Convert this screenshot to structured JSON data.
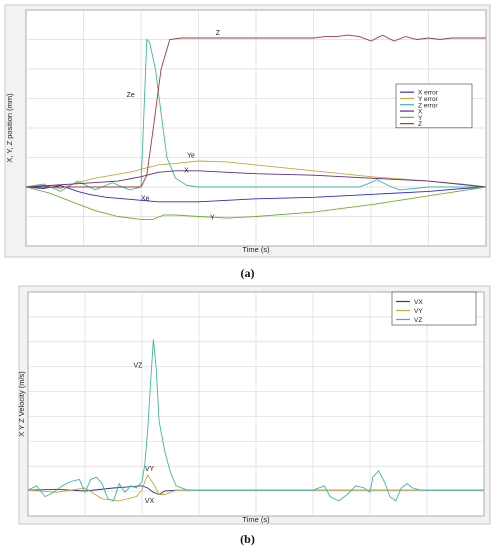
{
  "figure_labels": {
    "a": "(a)",
    "b": "(b)"
  },
  "chart_data": [
    {
      "type": "line",
      "ylabel": "X, Y, Z position (mm)",
      "xlabel": "Time (s)",
      "xlim": [
        0,
        8
      ],
      "ylim": [
        -2,
        6
      ],
      "grid": true,
      "legend_position": "right",
      "series": [
        {
          "name": "X error",
          "color": "#2b2bd6",
          "label": "Xe",
          "x": [
            0,
            0.3,
            0.6,
            0.9,
            1.1,
            1.4,
            1.7,
            2.0,
            2.3,
            2.6,
            3.0,
            3.5,
            4.0,
            5.0,
            6.0,
            7.0,
            7.6,
            8.0
          ],
          "y": [
            0,
            -0.05,
            0.05,
            -0.15,
            -0.25,
            -0.35,
            -0.4,
            -0.45,
            -0.5,
            -0.5,
            -0.5,
            -0.45,
            -0.4,
            -0.35,
            -0.25,
            -0.15,
            -0.05,
            0
          ]
        },
        {
          "name": "Y error",
          "color": "#c9a640",
          "label": "Ye",
          "x": [
            0,
            0.3,
            0.6,
            0.9,
            1.2,
            1.5,
            1.8,
            2.0,
            2.3,
            2.6,
            3.0,
            3.5,
            4.0,
            5.0,
            6.0,
            7.0,
            7.6,
            8.0
          ],
          "y": [
            0,
            0.05,
            -0.05,
            0.15,
            0.3,
            0.4,
            0.5,
            0.6,
            0.75,
            0.8,
            0.88,
            0.85,
            0.75,
            0.55,
            0.35,
            0.2,
            0.1,
            0
          ]
        },
        {
          "name": "Z error",
          "color": "#3fb6a4",
          "label": "Ze",
          "x": [
            0,
            0.3,
            0.6,
            0.9,
            1.2,
            1.5,
            1.8,
            2.0,
            2.05,
            2.1,
            2.15,
            2.25,
            2.35,
            2.45,
            2.6,
            2.8,
            3.0,
            4.0,
            5.0,
            5.8,
            6.0,
            6.1,
            6.3,
            6.5,
            7.0,
            8.0
          ],
          "y": [
            0,
            0.1,
            -0.15,
            0.2,
            -0.1,
            0.15,
            -0.1,
            0,
            2.5,
            5.0,
            4.9,
            4.0,
            2.5,
            1.0,
            0.3,
            0.05,
            0,
            0,
            0,
            0,
            0.15,
            0.25,
            0.05,
            -0.1,
            0,
            0
          ]
        },
        {
          "name": "X",
          "color": "#5b2d86",
          "label": "X",
          "x": [
            0,
            0.4,
            0.8,
            1.2,
            1.6,
            2.0,
            2.3,
            2.6,
            3.0,
            3.5,
            4.0,
            5.0,
            6.0,
            7.0,
            7.5,
            8.0
          ],
          "y": [
            0,
            0.05,
            0.1,
            0.15,
            0.2,
            0.35,
            0.5,
            0.55,
            0.55,
            0.5,
            0.45,
            0.4,
            0.3,
            0.2,
            0.1,
            0
          ]
        },
        {
          "name": "Y",
          "color": "#6fb02e",
          "label": "Y",
          "x": [
            0,
            0.4,
            0.8,
            1.2,
            1.6,
            2.0,
            2.2,
            2.4,
            2.6,
            3.0,
            3.5,
            4.0,
            5.0,
            6.0,
            7.0,
            7.5,
            8.0
          ],
          "y": [
            0,
            -0.2,
            -0.5,
            -0.8,
            -1.0,
            -1.1,
            -1.1,
            -0.95,
            -0.95,
            -1.0,
            -1.05,
            -1.0,
            -0.85,
            -0.6,
            -0.3,
            -0.15,
            0
          ]
        },
        {
          "name": "Z",
          "color": "#a63a3a",
          "label": "Z",
          "x": [
            0,
            0.5,
            1.0,
            1.5,
            2.0,
            2.1,
            2.2,
            2.35,
            2.5,
            2.7,
            3.0,
            4.0,
            5.0,
            5.2,
            5.4,
            5.6,
            5.8,
            6.0,
            6.2,
            6.4,
            6.6,
            6.8,
            7.0,
            7.2,
            7.4,
            7.6,
            7.8,
            8.0
          ],
          "y": [
            0,
            0,
            0,
            0,
            0,
            0.4,
            1.8,
            4.0,
            5.0,
            5.05,
            5.05,
            5.05,
            5.05,
            5.1,
            5.1,
            5.15,
            5.1,
            4.95,
            5.15,
            4.95,
            5.1,
            5.0,
            5.05,
            5.0,
            5.05,
            5.05,
            5.05,
            5.05
          ]
        }
      ]
    },
    {
      "type": "line",
      "ylabel": "X Y Z Velocity (m/s)",
      "xlabel": "Time (s)",
      "xlim": [
        0,
        8
      ],
      "ylim": [
        -0.6,
        4.6
      ],
      "grid": true,
      "legend_position": "top-right",
      "series": [
        {
          "name": "VX",
          "color": "#2b3a7a",
          "label": "VX",
          "x": [
            0,
            0.5,
            1.0,
            1.5,
            1.8,
            2.0,
            2.1,
            2.2,
            2.3,
            2.4,
            2.6,
            3.0,
            4.0,
            5.0,
            6.0,
            7.0,
            8.0
          ],
          "y": [
            0,
            0.02,
            -0.02,
            0.05,
            0.08,
            0.1,
            0.05,
            -0.05,
            -0.1,
            -0.02,
            0,
            0,
            0,
            0,
            0,
            0,
            0
          ]
        },
        {
          "name": "VY",
          "color": "#c9a640",
          "label": "VY",
          "x": [
            0,
            0.5,
            1.0,
            1.3,
            1.6,
            1.9,
            2.0,
            2.05,
            2.1,
            2.2,
            2.3,
            2.4,
            2.6,
            3.0,
            4.0,
            5.0,
            6.0,
            7.0,
            8.0
          ],
          "y": [
            0,
            -0.05,
            0.05,
            -0.2,
            -0.25,
            -0.15,
            0.0,
            0.2,
            0.35,
            0.15,
            -0.1,
            -0.1,
            0,
            0,
            0,
            0,
            0,
            0,
            0
          ]
        },
        {
          "name": "VZ",
          "color": "#3fb6a4",
          "label": "VZ",
          "x": [
            0,
            0.15,
            0.3,
            0.45,
            0.6,
            0.75,
            0.9,
            1.0,
            1.1,
            1.2,
            1.3,
            1.4,
            1.5,
            1.6,
            1.7,
            1.8,
            1.9,
            2.0,
            2.05,
            2.1,
            2.15,
            2.2,
            2.25,
            2.3,
            2.4,
            2.5,
            2.6,
            2.8,
            3.0,
            4.0,
            5.0,
            5.2,
            5.3,
            5.45,
            5.6,
            5.75,
            5.9,
            6.0,
            6.05,
            6.15,
            6.25,
            6.35,
            6.45,
            6.55,
            6.65,
            6.75,
            6.9,
            7.2,
            7.5,
            8.0
          ],
          "y": [
            0,
            0.1,
            -0.15,
            -0.05,
            0.1,
            0.2,
            0.25,
            -0.05,
            0.25,
            0.3,
            0.15,
            -0.2,
            -0.25,
            0.15,
            -0.05,
            0.1,
            0.05,
            0.2,
            0.6,
            1.4,
            2.5,
            3.5,
            2.8,
            1.6,
            0.9,
            0.4,
            0.1,
            0.0,
            0.0,
            0.0,
            0.0,
            0.1,
            -0.15,
            -0.25,
            -0.1,
            0.1,
            0.05,
            -0.05,
            0.3,
            0.45,
            0.2,
            -0.15,
            -0.25,
            0.05,
            0.15,
            0.05,
            0.0,
            0.0,
            0.0,
            0.0
          ]
        }
      ]
    }
  ]
}
